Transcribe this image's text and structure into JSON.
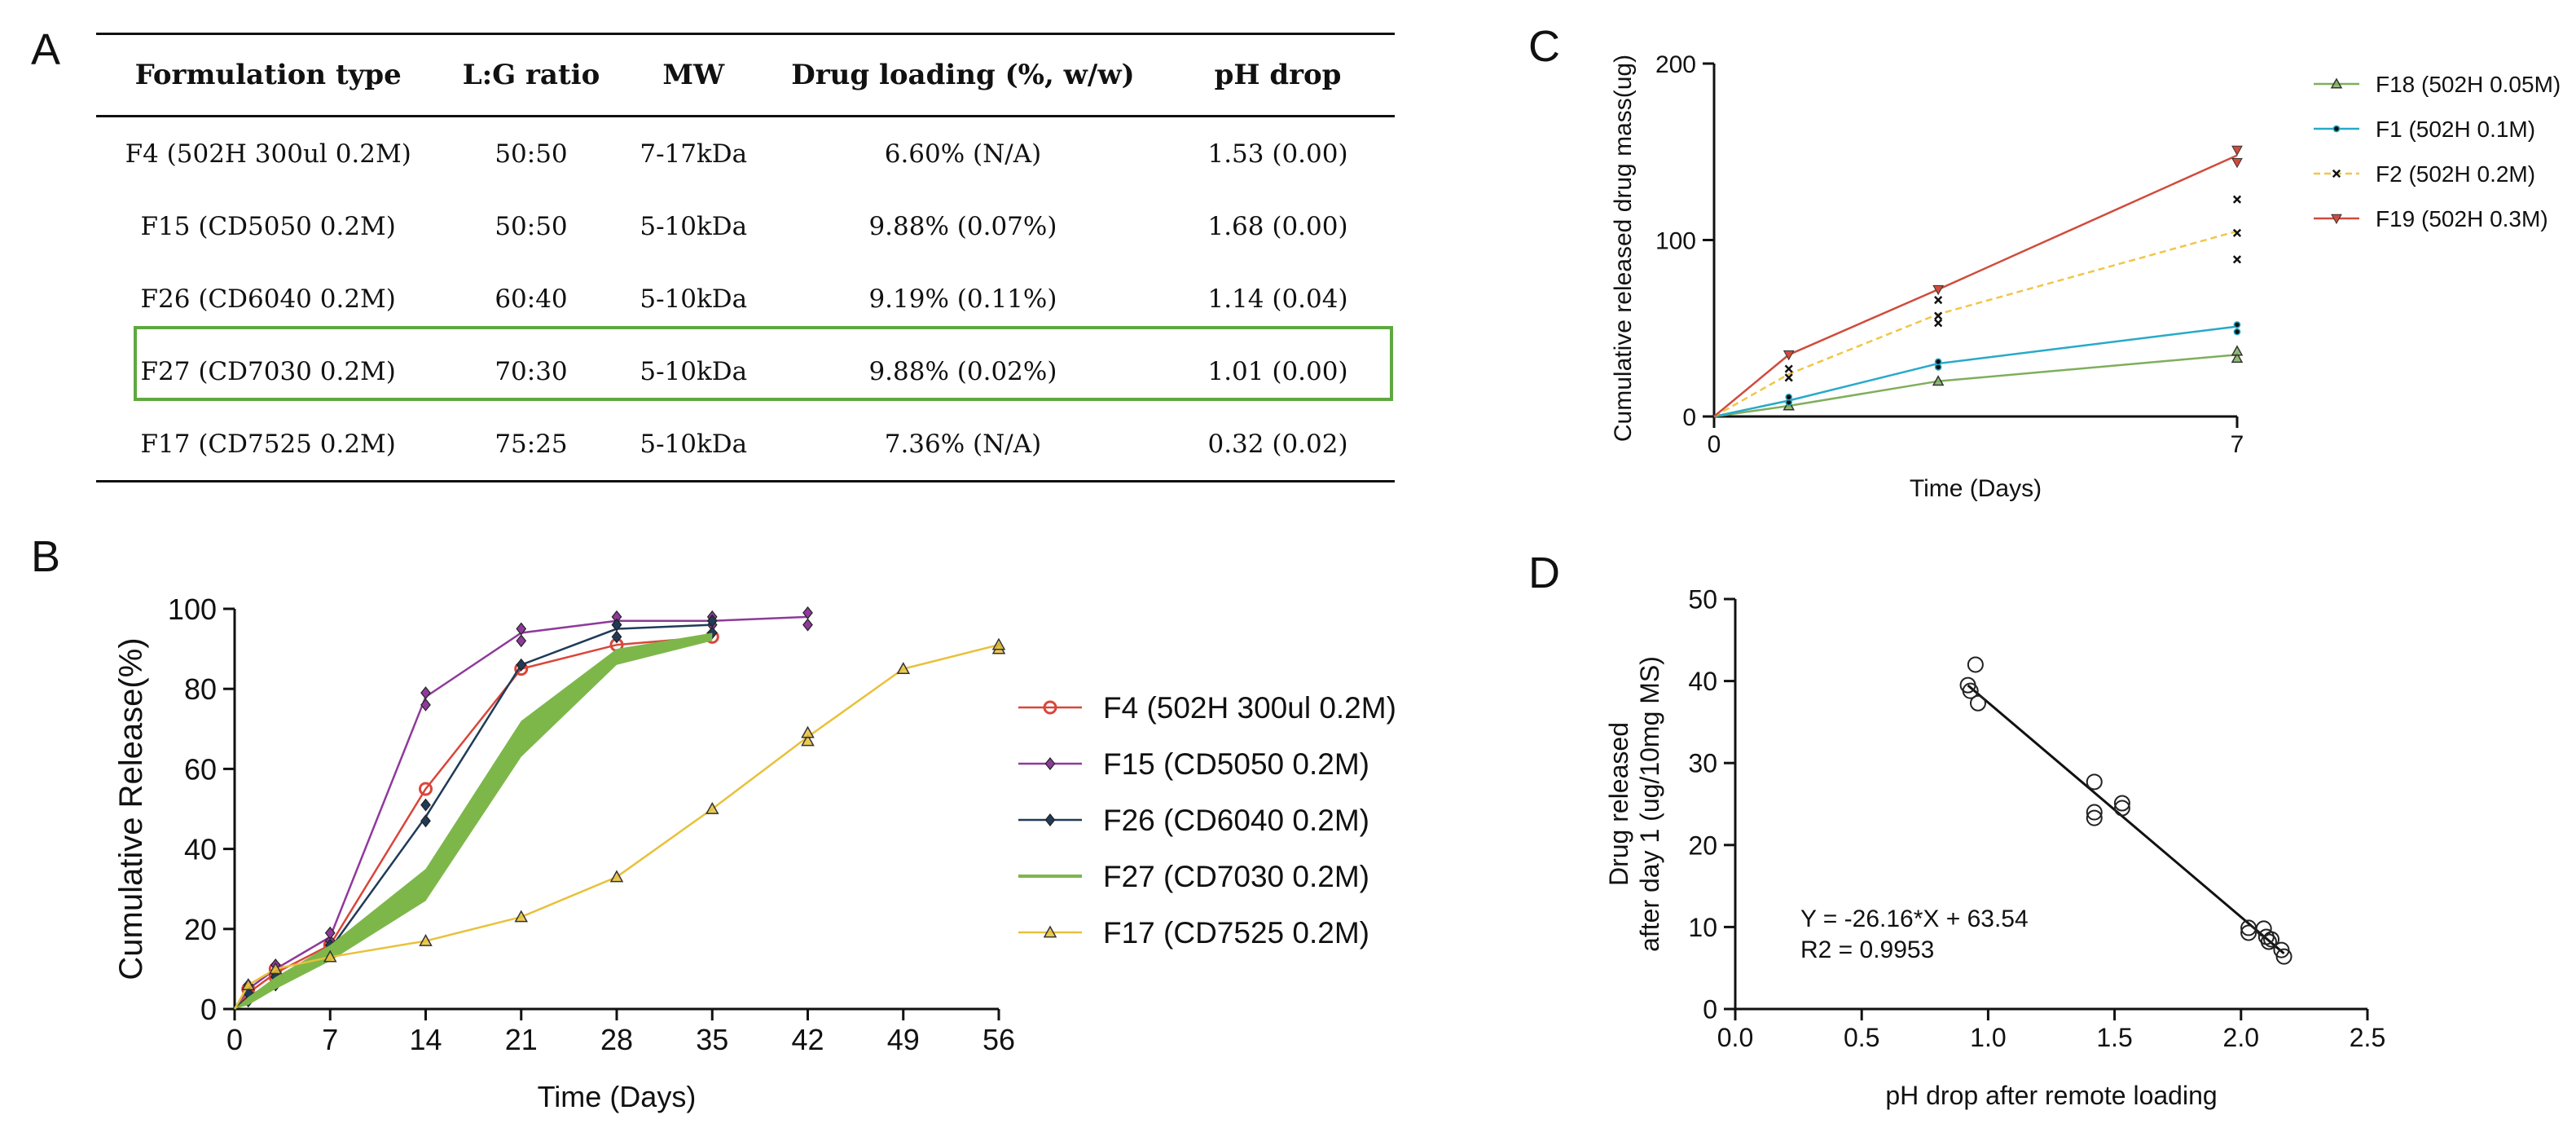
{
  "panels": {
    "a": "A",
    "b": "B",
    "c": "C",
    "d": "D"
  },
  "table": {
    "headers": [
      "Formulation type",
      "L:G ratio",
      "MW",
      "Drug loading (%, w/w)",
      "pH drop"
    ],
    "rows": [
      [
        "F4 (502H 300ul 0.2M)",
        "50:50",
        "7-17kDa",
        "6.60% (N/A)",
        "1.53 (0.00)"
      ],
      [
        "F15 (CD5050 0.2M)",
        "50:50",
        "5-10kDa",
        "9.88% (0.07%)",
        "1.68 (0.00)"
      ],
      [
        "F26 (CD6040 0.2M)",
        "60:40",
        "5-10kDa",
        "9.19% (0.11%)",
        "1.14 (0.04)"
      ],
      [
        "F27 (CD7030 0.2M)",
        "70:30",
        "5-10kDa",
        "9.88% (0.02%)",
        "1.01 (0.00)"
      ],
      [
        "F17 (CD7525 0.2M)",
        "75:25",
        "5-10kDa",
        "7.36% (N/A)",
        "0.32 (0.02)"
      ]
    ],
    "highlight_row": 3,
    "highlight_color": "#5fa840"
  },
  "chart_data": [
    {
      "id": "B",
      "type": "line",
      "xlabel": "Time (Days)",
      "ylabel": "Cumulative Release(%)",
      "xlim": [
        0,
        56
      ],
      "ylim": [
        0,
        100
      ],
      "xticks": [
        0,
        7,
        14,
        21,
        28,
        35,
        42,
        49,
        56
      ],
      "yticks": [
        0,
        20,
        40,
        60,
        80,
        100
      ],
      "legend_position": "right",
      "series": [
        {
          "name": "F4 (502H 300ul 0.2M)",
          "color": "#d9463a",
          "marker": "circle",
          "x": [
            0,
            1,
            3,
            7,
            14,
            21,
            28,
            35
          ],
          "y": [
            0,
            4,
            9,
            16,
            55,
            85,
            91,
            93
          ],
          "points": [
            [
              1,
              3
            ],
            [
              1,
              5
            ],
            [
              3,
              8
            ],
            [
              3,
              10
            ],
            [
              7,
              16
            ],
            [
              14,
              55
            ],
            [
              21,
              85
            ],
            [
              28,
              91
            ],
            [
              35,
              93
            ]
          ]
        },
        {
          "name": "F15 (CD5050 0.2M)",
          "color": "#8e3a9a",
          "marker": "diamond",
          "x": [
            0,
            1,
            3,
            7,
            14,
            21,
            28,
            35,
            42
          ],
          "y": [
            0,
            5,
            10,
            18,
            78,
            94,
            97,
            97,
            98
          ],
          "points": [
            [
              1,
              4
            ],
            [
              1,
              6
            ],
            [
              3,
              9
            ],
            [
              3,
              11
            ],
            [
              7,
              17
            ],
            [
              7,
              19
            ],
            [
              14,
              76
            ],
            [
              14,
              79
            ],
            [
              21,
              92
            ],
            [
              21,
              95
            ],
            [
              28,
              96
            ],
            [
              28,
              98
            ],
            [
              35,
              96
            ],
            [
              35,
              98
            ],
            [
              42,
              96
            ],
            [
              42,
              99
            ]
          ]
        },
        {
          "name": "F26 (CD6040 0.2M)",
          "color": "#1f3b57",
          "marker": "diamond",
          "x": [
            0,
            1,
            3,
            7,
            14,
            21,
            28,
            35
          ],
          "y": [
            0,
            3,
            7,
            15,
            48,
            86,
            95,
            96
          ],
          "points": [
            [
              1,
              2
            ],
            [
              1,
              4
            ],
            [
              3,
              6
            ],
            [
              3,
              8
            ],
            [
              7,
              14
            ],
            [
              7,
              16
            ],
            [
              14,
              47
            ],
            [
              14,
              51
            ],
            [
              21,
              86
            ],
            [
              28,
              93
            ],
            [
              28,
              96
            ],
            [
              35,
              94
            ],
            [
              35,
              97
            ]
          ]
        },
        {
          "name": "F27 (CD7030 0.2M)",
          "color": "#7db74a",
          "marker": "band",
          "x": [
            0,
            1,
            3,
            7,
            14,
            21,
            28,
            35
          ],
          "lower": [
            0,
            1,
            5,
            12,
            27,
            63,
            86,
            92
          ],
          "upper": [
            0,
            3,
            8,
            16,
            35,
            72,
            90,
            94
          ]
        },
        {
          "name": "F17 (CD7525 0.2M)",
          "color": "#e8c13a",
          "marker": "triangle",
          "x": [
            0,
            1,
            3,
            7,
            14,
            21,
            28,
            35,
            42,
            49,
            56
          ],
          "y": [
            0,
            6,
            10,
            13,
            17,
            23,
            33,
            50,
            68,
            85,
            91
          ],
          "points": [
            [
              1,
              6
            ],
            [
              3,
              10
            ],
            [
              7,
              13
            ],
            [
              14,
              17
            ],
            [
              21,
              23
            ],
            [
              28,
              33
            ],
            [
              35,
              50
            ],
            [
              42,
              67
            ],
            [
              42,
              69
            ],
            [
              49,
              85
            ],
            [
              56,
              90
            ],
            [
              56,
              91
            ]
          ]
        }
      ]
    },
    {
      "id": "C",
      "type": "line",
      "xlabel": "Time (Days)",
      "ylabel": "Cumulative released drug mass(ug)",
      "xlim": [
        0,
        7
      ],
      "ylim": [
        0,
        200
      ],
      "xticks": [
        0,
        7
      ],
      "yticks": [
        0,
        100,
        200
      ],
      "legend_position": "top-right",
      "series": [
        {
          "name": "F18 (502H 0.05M)",
          "color": "#7fae5c",
          "marker": "triangle",
          "dashed": false,
          "x": [
            0,
            1,
            3,
            7
          ],
          "y": [
            0,
            6,
            20,
            35
          ],
          "points": [
            [
              1,
              6
            ],
            [
              3,
              20
            ],
            [
              7,
              33
            ],
            [
              7,
              37
            ]
          ]
        },
        {
          "name": "F1 (502H 0.1M)",
          "color": "#27a9c9",
          "marker": "dot",
          "dashed": false,
          "x": [
            0,
            1,
            3,
            7
          ],
          "y": [
            0,
            9,
            30,
            51
          ],
          "points": [
            [
              1,
              8
            ],
            [
              1,
              11
            ],
            [
              3,
              28
            ],
            [
              3,
              31
            ],
            [
              7,
              48
            ],
            [
              7,
              52
            ]
          ]
        },
        {
          "name": "F2 (502H 0.2M)",
          "color": "#f0c64a",
          "marker": "x",
          "dashed": true,
          "x": [
            0,
            1,
            3,
            7
          ],
          "y": [
            0,
            24,
            58,
            105
          ],
          "points": [
            [
              1,
              22
            ],
            [
              1,
              27
            ],
            [
              3,
              53
            ],
            [
              3,
              57
            ],
            [
              3,
              66
            ],
            [
              7,
              89
            ],
            [
              7,
              104
            ],
            [
              7,
              123
            ]
          ]
        },
        {
          "name": "F19 (502H 0.3M)",
          "color": "#d04b3c",
          "marker": "triangle-down",
          "dashed": false,
          "x": [
            0,
            1,
            3,
            7
          ],
          "y": [
            0,
            35,
            72,
            148
          ],
          "points": [
            [
              1,
              35
            ],
            [
              3,
              72
            ],
            [
              7,
              144
            ],
            [
              7,
              151
            ]
          ]
        }
      ]
    },
    {
      "id": "D",
      "type": "scatter",
      "xlabel": "pH drop after remote loading",
      "ylabel_line1": "Drug released",
      "ylabel_line2": "after day 1 (ug/10mg MS)",
      "xlim": [
        0,
        2.5
      ],
      "ylim": [
        0,
        50
      ],
      "xticks": [
        "0.0",
        "0.5",
        "1.0",
        "1.5",
        "2.0",
        "2.5"
      ],
      "yticks": [
        0,
        10,
        20,
        30,
        40,
        50
      ],
      "equation": "Y = -26.16*X + 63.54",
      "r2": "R2 = 0.9953",
      "fit": {
        "slope": -26.16,
        "intercept": 63.54,
        "x_range": [
          0.92,
          2.17
        ]
      },
      "points": [
        [
          0.92,
          39.5
        ],
        [
          0.93,
          38.8
        ],
        [
          0.95,
          42
        ],
        [
          0.96,
          37.3
        ],
        [
          1.42,
          27.7
        ],
        [
          1.42,
          24
        ],
        [
          1.42,
          23.3
        ],
        [
          1.53,
          25.1
        ],
        [
          1.53,
          24.5
        ],
        [
          2.03,
          9.9
        ],
        [
          2.03,
          9.3
        ],
        [
          2.09,
          9.8
        ],
        [
          2.1,
          8.8
        ],
        [
          2.11,
          8.2
        ],
        [
          2.12,
          8.5
        ],
        [
          2.16,
          7.2
        ],
        [
          2.17,
          6.4
        ]
      ]
    }
  ]
}
